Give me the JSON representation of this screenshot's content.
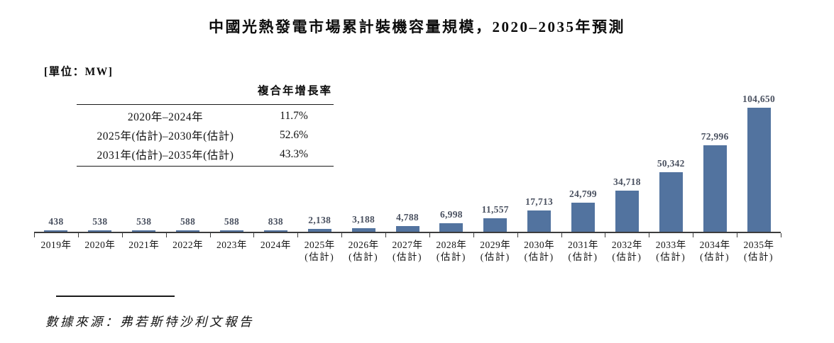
{
  "title": "中國光熱發電市場累計裝機容量規模，2020–2035年預測",
  "unit_label": "[單位：MW]",
  "cagr_table": {
    "header": "複合年增長率",
    "rows": [
      {
        "period": "2020年–2024年",
        "value": "11.7%"
      },
      {
        "period": "2025年(估計)–2030年(估計)",
        "value": "52.6%"
      },
      {
        "period": "2031年(估計)–2035年(估計)",
        "value": "43.3%"
      }
    ]
  },
  "chart_data": {
    "type": "bar",
    "title": "中國光熱發電市場累計裝機容量規模，2020–2035年預測",
    "unit": "MW",
    "categories": [
      "2019年",
      "2020年",
      "2021年",
      "2022年",
      "2023年",
      "2024年",
      "2025年(估計)",
      "2026年(估計)",
      "2027年(估計)",
      "2028年(估計)",
      "2029年(估計)",
      "2030年(估計)",
      "2031年(估計)",
      "2032年(估計)",
      "2033年(估計)",
      "2034年(估計)",
      "2035年(估計)"
    ],
    "values": [
      438,
      538,
      538,
      588,
      588,
      838,
      2138,
      3188,
      4788,
      6998,
      11557,
      17713,
      24799,
      34718,
      50342,
      72996,
      104650
    ],
    "value_labels": [
      "438",
      "538",
      "538",
      "588",
      "588",
      "838",
      "2,138",
      "3,188",
      "4,788",
      "6,998",
      "11,557",
      "17,713",
      "24,799",
      "34,718",
      "50,342",
      "72,996",
      "104,650"
    ],
    "xlabel": "",
    "ylabel": "MW",
    "ylim": [
      0,
      110000
    ],
    "grid": false,
    "legend": false,
    "bar_color": "#52739f",
    "value_label_color": "#4a5160",
    "axis_color": "#3d3d3d"
  },
  "source": "數據來源：弗若斯特沙利文報告"
}
